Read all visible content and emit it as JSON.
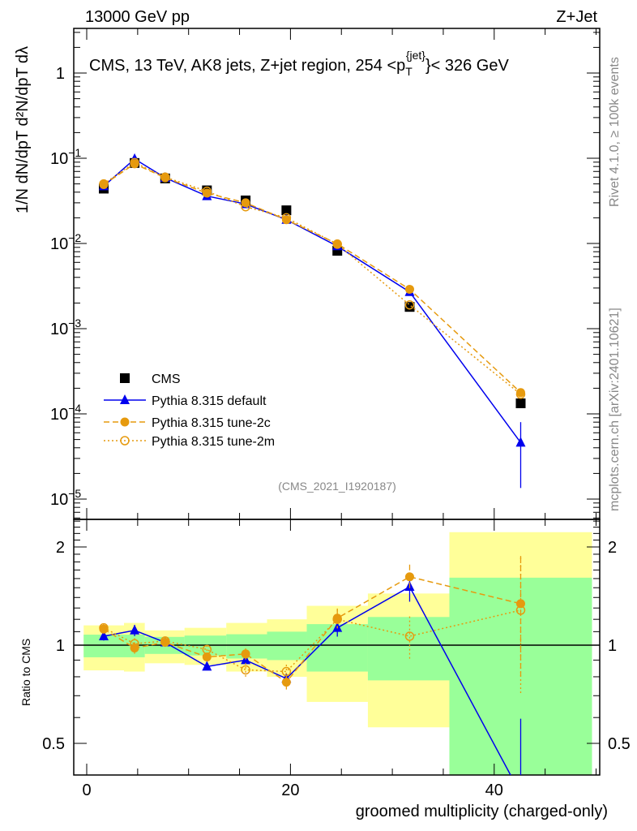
{
  "header": {
    "energy": "13000 GeV pp",
    "process": "Z+Jet"
  },
  "side_labels": {
    "rivet": "Rivet 4.1.0, ≥ 100k events",
    "mcplots": "mcplots.cern.ch [arXiv:2401.10621]"
  },
  "analysis_id": "(CMS_2021_I1920187)",
  "ratio_ylabel": "Ratio to CMS",
  "colors": {
    "cms": "#000000",
    "default": "#0000ee",
    "tune2c": "#e69a0e",
    "tune2m": "#e69a0e",
    "yellow": "#ffff99",
    "green": "#99ff99"
  },
  "chart_data": {
    "type": "line",
    "title": "CMS, 13 TeV, AK8 jets, Z+jet region, 254 <p_T^{jet}< 326 GeV",
    "title_parts": {
      "main": "CMS, 13 TeV, AK8 jets, Z+jet region, 254 <p",
      "sub": "T",
      "sup": "{jet}",
      "end": "}< 326 GeV"
    },
    "xlabel": "groomed multiplicity (charged-only)",
    "ylabel": "1/N dN/dpT d²N/dpT dλ",
    "xlim": [
      -1.3,
      50.4
    ],
    "ylim": [
      6e-06,
      3.3
    ],
    "yscale": "log",
    "x_ticks": [
      "0",
      "20",
      "40"
    ],
    "x_tick_values": [
      0,
      20,
      40
    ],
    "y_ticks": [
      {
        "v": 1,
        "base": "1",
        "exp": ""
      },
      {
        "v": 0.1,
        "base": "10",
        "exp": "−1"
      },
      {
        "v": 0.01,
        "base": "10",
        "exp": "−2"
      },
      {
        "v": 0.001,
        "base": "10",
        "exp": "−3"
      },
      {
        "v": 0.0001,
        "base": "10",
        "exp": "−4"
      },
      {
        "v": 1e-05,
        "base": "10",
        "exp": "−5"
      }
    ],
    "x": [
      1.67,
      4.7,
      7.7,
      11.8,
      15.6,
      19.6,
      24.6,
      31.7,
      42.6
    ],
    "bin_edges": [
      -0.3,
      3.66,
      5.7,
      9.6,
      13.7,
      17.7,
      21.6,
      27.6,
      35.6,
      49.6
    ],
    "series": [
      {
        "name": "CMS",
        "key": "cms",
        "marker": "square",
        "values": [
          0.044,
          0.088,
          0.058,
          0.042,
          0.032,
          0.0245,
          0.0082,
          0.0018,
          0.000133
        ]
      },
      {
        "name": "Pythia 8.315 default",
        "key": "default",
        "marker": "triangle",
        "line": "solid",
        "values": [
          0.047,
          0.098,
          0.059,
          0.036,
          0.029,
          0.019,
          0.0093,
          0.0027,
          4.6e-05
        ],
        "ratio": [
          1.065,
          1.11,
          1.02,
          0.86,
          0.9,
          0.79,
          1.13,
          1.51,
          0.35
        ],
        "ratio_err": [
          0.03,
          0.04,
          0.03,
          0.02,
          0.03,
          0.04,
          0.06,
          0.1,
          0.7
        ]
      },
      {
        "name": "Pythia 8.315 tune-2c",
        "key": "tune2c",
        "marker": "filled-circle",
        "line": "dashed",
        "values": [
          0.049,
          0.086,
          0.059,
          0.039,
          0.03,
          0.019,
          0.0099,
          0.0029,
          0.000178
        ],
        "ratio": [
          1.12,
          0.98,
          1.02,
          0.92,
          0.94,
          0.77,
          1.21,
          1.62,
          1.34
        ],
        "ratio_err": [
          0.03,
          0.04,
          0.03,
          0.02,
          0.04,
          0.05,
          0.07,
          0.09,
          0.4
        ]
      },
      {
        "name": "Pythia 8.315 tune-2m",
        "key": "tune2m",
        "marker": "open-circle",
        "line": "dotted",
        "values": [
          0.05,
          0.089,
          0.06,
          0.041,
          0.027,
          0.02,
          0.0098,
          0.0019,
          0.00017
        ],
        "ratio": [
          1.13,
          1.01,
          1.03,
          0.97,
          0.84,
          0.83,
          1.2,
          1.065,
          1.28
        ],
        "ratio_err": [
          0.03,
          0.04,
          0.03,
          0.03,
          0.05,
          0.05,
          0.07,
          0.15,
          0.45
        ]
      }
    ],
    "main_err_default_last": [
      1.35e-05,
      8e-05
    ],
    "ratio_panel": {
      "ylabel": "Ratio to CMS",
      "ylim": [
        0.4,
        2.43
      ],
      "yscale": "log",
      "y_ticks": [
        {
          "v": 0.5,
          "label": "0.5"
        },
        {
          "v": 1,
          "label": "1"
        },
        {
          "v": 2,
          "label": "2"
        }
      ],
      "yellow_band": [
        [
          0.837,
          1.15
        ],
        [
          0.83,
          1.17
        ],
        [
          0.88,
          1.11
        ],
        [
          0.87,
          1.13
        ],
        [
          0.83,
          1.17
        ],
        [
          0.8,
          1.2
        ],
        [
          0.67,
          1.32
        ],
        [
          0.56,
          1.44
        ],
        [
          0.3,
          2.22
        ]
      ],
      "green_band": [
        [
          0.918,
          1.077
        ],
        [
          0.918,
          1.077
        ],
        [
          0.94,
          1.06
        ],
        [
          0.93,
          1.07
        ],
        [
          0.91,
          1.08
        ],
        [
          0.9,
          1.1
        ],
        [
          0.83,
          1.16
        ],
        [
          0.78,
          1.22
        ],
        [
          0.3,
          1.61
        ]
      ]
    },
    "legend_position": "bottom-left"
  }
}
